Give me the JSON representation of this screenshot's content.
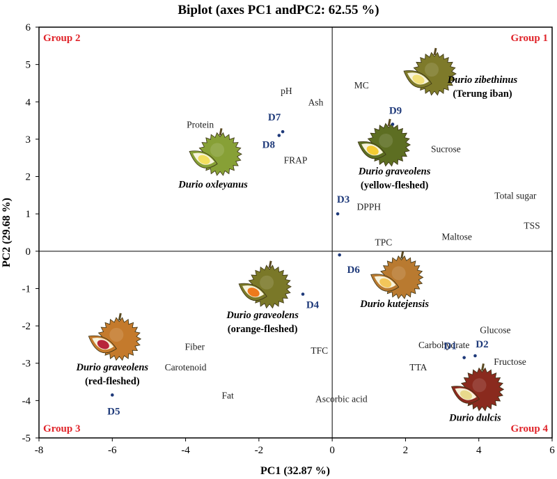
{
  "chart_data": {
    "type": "scatter",
    "title": "Biplot (axes PC1 andPC2: 62.55 %)",
    "xlabel": "PC1 (32.87 %)",
    "ylabel": "PC2 (29.68 %)",
    "xlim": [
      -8,
      6
    ],
    "ylim": [
      -5,
      6
    ],
    "xticks": [
      "-8",
      "-6",
      "-4",
      "-2",
      "0",
      "2",
      "4",
      "6"
    ],
    "yticks": [
      "-5",
      "-4",
      "-3",
      "-2",
      "-1",
      "0",
      "1",
      "2",
      "3",
      "4",
      "5",
      "6"
    ],
    "groups": [
      {
        "label": "Group 1",
        "position": "top-right"
      },
      {
        "label": "Group 2",
        "position": "top-left"
      },
      {
        "label": "Group 3",
        "position": "bottom-left"
      },
      {
        "label": "Group 4",
        "position": "bottom-right"
      }
    ],
    "samples": [
      {
        "label": "D1",
        "x": 3.6,
        "y": -2.85
      },
      {
        "label": "D2",
        "x": 3.9,
        "y": -2.8
      },
      {
        "label": "D3",
        "x": 0.15,
        "y": 1.0
      },
      {
        "label": "D4",
        "x": -0.8,
        "y": -1.15
      },
      {
        "label": "D5",
        "x": -6.0,
        "y": -3.85
      },
      {
        "label": "D6",
        "x": 0.2,
        "y": -0.1
      },
      {
        "label": "D7",
        "x": -1.35,
        "y": 3.2
      },
      {
        "label": "D8",
        "x": -1.45,
        "y": 3.1
      },
      {
        "label": "D9",
        "x": 1.65,
        "y": 3.4
      }
    ],
    "variables": [
      {
        "label": "MC",
        "x": 0.8,
        "y": 4.45
      },
      {
        "label": "pH",
        "x": -1.25,
        "y": 4.3
      },
      {
        "label": "Ash",
        "x": -0.45,
        "y": 4.0
      },
      {
        "label": "Protein",
        "x": -3.6,
        "y": 3.4
      },
      {
        "label": "FRAP",
        "x": -1.0,
        "y": 2.45
      },
      {
        "label": "Sucrose",
        "x": 3.1,
        "y": 2.75
      },
      {
        "label": "DPPH",
        "x": 1.0,
        "y": 1.2
      },
      {
        "label": "Total sugar",
        "x": 5.0,
        "y": 1.5
      },
      {
        "label": "TSS",
        "x": 5.45,
        "y": 0.7
      },
      {
        "label": "Maltose",
        "x": 3.4,
        "y": 0.4
      },
      {
        "label": "TPC",
        "x": 1.4,
        "y": 0.25
      },
      {
        "label": "Glucose",
        "x": 4.45,
        "y": -2.1
      },
      {
        "label": "Carbohydrate",
        "x": 3.05,
        "y": -2.5
      },
      {
        "label": "Fructose",
        "x": 4.85,
        "y": -2.95
      },
      {
        "label": "TTA",
        "x": 2.35,
        "y": -3.1
      },
      {
        "label": "TFC",
        "x": -0.35,
        "y": -2.65
      },
      {
        "label": "Fiber",
        "x": -3.75,
        "y": -2.55
      },
      {
        "label": "Carotenoid",
        "x": -4.0,
        "y": -3.1
      },
      {
        "label": "Fat",
        "x": -2.85,
        "y": -3.85
      },
      {
        "label": "Ascorbic acid",
        "x": 0.25,
        "y": -3.95
      }
    ],
    "species": [
      {
        "name": "Durio zibethinus",
        "sub": "(Terung iban)",
        "x": 4.1,
        "y": 4.6,
        "img_x": 2.6,
        "img_y": 4.75,
        "flesh": "#f2e07a",
        "husk": "#7e7a2a"
      },
      {
        "name": "Durio graveolens",
        "sub": "(yellow-fleshed)",
        "x": 1.7,
        "y": 2.15,
        "img_x": 1.35,
        "img_y": 2.85,
        "flesh": "#f5cc33",
        "husk": "#5d6e22"
      },
      {
        "name": "Durio oxleyanus",
        "sub": "",
        "x": -3.25,
        "y": 1.8,
        "img_x": -3.25,
        "img_y": 2.6,
        "flesh": "#f2df5e",
        "husk": "#87a036"
      },
      {
        "name": "Durio kutejensis",
        "sub": "",
        "x": 1.7,
        "y": -1.4,
        "img_x": 1.7,
        "img_y": -0.7,
        "flesh": "#f3c65a",
        "husk": "#b97a30"
      },
      {
        "name": "Durio graveolens",
        "sub": "(orange-fleshed)",
        "x": -1.9,
        "y": -1.7,
        "img_x": -1.9,
        "img_y": -0.95,
        "flesh": "#ee7a1c",
        "husk": "#7a7828"
      },
      {
        "name": "Durio graveolens",
        "sub": "(red-fleshed)",
        "x": -6.0,
        "y": -3.1,
        "img_x": -6.0,
        "img_y": -2.35,
        "flesh": "#b8253a",
        "husk": "#c47a2c"
      },
      {
        "name": "Durio dulcis",
        "sub": "",
        "x": 3.9,
        "y": -4.45,
        "img_x": 3.9,
        "img_y": -3.7,
        "flesh": "#e8d98c",
        "husk": "#8a2a1e"
      }
    ]
  }
}
